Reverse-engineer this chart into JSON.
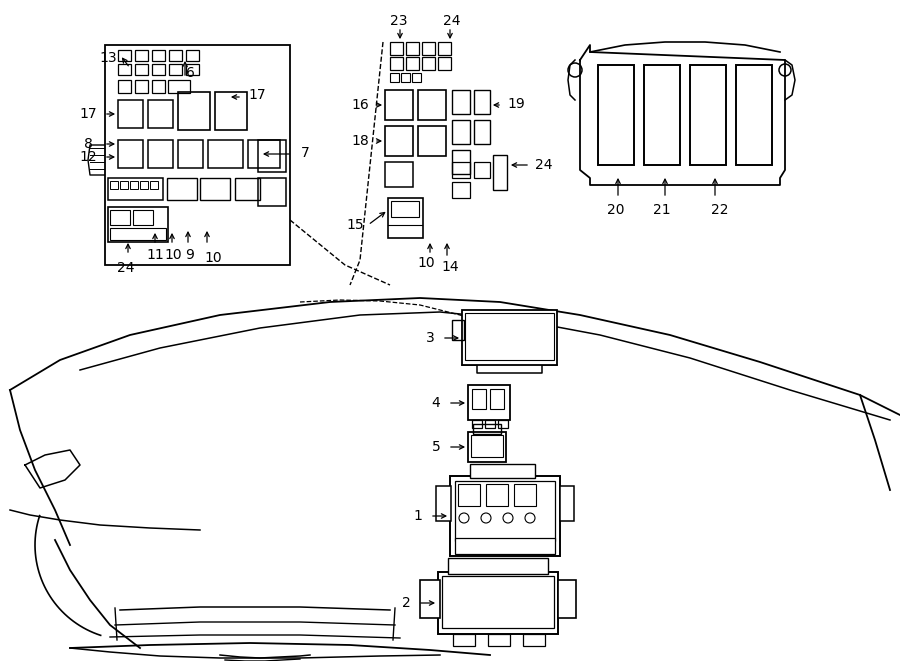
{
  "bg_color": "#ffffff",
  "line_color": "#000000",
  "fig_width": 9.0,
  "fig_height": 6.61,
  "dpi": 100,
  "label_fs": 10
}
